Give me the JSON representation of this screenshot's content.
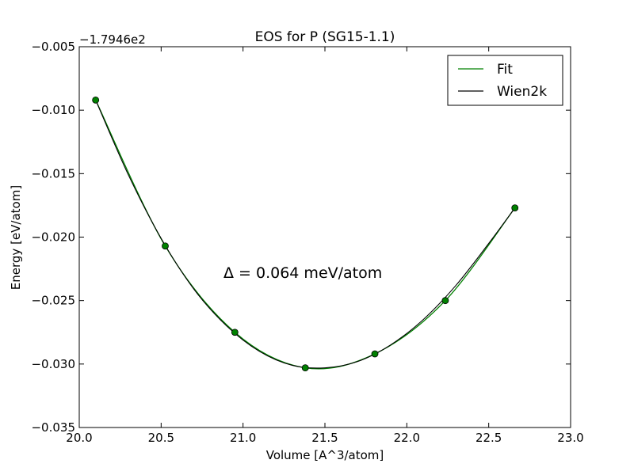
{
  "chart_data": {
    "type": "line",
    "title": "EOS for P (SG15-1.1)",
    "xlabel": "Volume [A^3/atom]",
    "ylabel": "Energy [eV/atom]",
    "offset_label": "−1.7946e2",
    "annotation": "Δ = 0.064 meV/atom",
    "xlim": [
      20.0,
      23.0
    ],
    "ylim": [
      -0.035,
      -0.005
    ],
    "xticks": [
      20.0,
      20.5,
      21.0,
      21.5,
      22.0,
      22.5,
      23.0
    ],
    "xtick_labels": [
      "20.0",
      "20.5",
      "21.0",
      "21.5",
      "22.0",
      "22.5",
      "23.0"
    ],
    "yticks": [
      -0.035,
      -0.03,
      -0.025,
      -0.02,
      -0.015,
      -0.01,
      -0.005
    ],
    "ytick_labels": [
      "−0.035",
      "−0.030",
      "−0.025",
      "−0.020",
      "−0.015",
      "−0.010",
      "−0.005"
    ],
    "grid": false,
    "legend_position": "top-right",
    "series": [
      {
        "name": "Fit",
        "kind": "points-and-line",
        "color": "#008000",
        "x": [
          20.1,
          20.525,
          20.95,
          21.38,
          21.805,
          22.235,
          22.66
        ],
        "y": [
          -0.0092,
          -0.0207,
          -0.0275,
          -0.0303,
          -0.0292,
          -0.025,
          -0.0177
        ]
      },
      {
        "name": "Wien2k",
        "kind": "line",
        "color": "#000000",
        "x": [
          20.1,
          20.3,
          20.5,
          20.7,
          20.9,
          21.1,
          21.3,
          21.5,
          21.7,
          21.9,
          22.1,
          22.3,
          22.5,
          22.66
        ],
        "y": [
          -0.0092,
          -0.0151,
          -0.0201,
          -0.0241,
          -0.027,
          -0.029,
          -0.0301,
          -0.0303,
          -0.0298,
          -0.0285,
          -0.0265,
          -0.0238,
          -0.0205,
          -0.0177
        ]
      }
    ]
  }
}
